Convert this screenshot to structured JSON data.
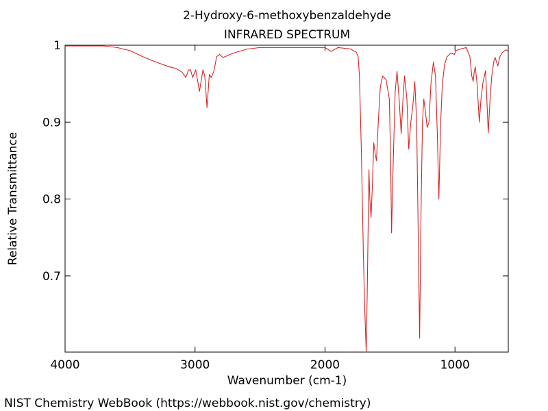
{
  "chart_data": {
    "type": "line",
    "title": "2-Hydroxy-6-methoxybenzaldehyde",
    "subtitle": "INFRARED SPECTRUM",
    "xlabel": "Wavenumber (cm-1)",
    "ylabel": "Relative Transmittance",
    "source": "NIST Chemistry WebBook (https://webbook.nist.gov/chemistry)",
    "x": [
      4000,
      3700,
      3600,
      3500,
      3400,
      3314,
      3200,
      3150,
      3100,
      3071,
      3050,
      3035,
      3018,
      2995,
      2966,
      2939,
      2925,
      2908,
      2890,
      2876,
      2855,
      2834,
      2810,
      2786,
      2700,
      2600,
      2500,
      2400,
      2200,
      2000,
      1953,
      1900,
      1800,
      1784,
      1760,
      1745,
      1735,
      1720,
      1705,
      1695,
      1683,
      1675,
      1662,
      1655,
      1646,
      1635,
      1625,
      1615,
      1604,
      1590,
      1575,
      1557,
      1530,
      1505,
      1495,
      1488,
      1475,
      1460,
      1446,
      1430,
      1414,
      1400,
      1388,
      1370,
      1356,
      1340,
      1325,
      1309,
      1295,
      1285,
      1272,
      1260,
      1250,
      1240,
      1225,
      1214,
      1200,
      1185,
      1166,
      1150,
      1135,
      1124,
      1110,
      1097,
      1080,
      1061,
      1030,
      1005,
      992,
      960,
      913,
      885,
      871,
      860,
      852,
      844,
      830,
      813,
      800,
      786,
      765,
      755,
      744,
      730,
      717,
      700,
      691,
      680,
      670,
      655,
      638,
      610,
      590
    ],
    "series": [
      {
        "name": "IR spectrum",
        "color": "#dd2222",
        "values": [
          0.999,
          0.999,
          0.997,
          0.993,
          0.985,
          0.979,
          0.972,
          0.97,
          0.965,
          0.958,
          0.968,
          0.968,
          0.958,
          0.968,
          0.94,
          0.968,
          0.96,
          0.919,
          0.962,
          0.958,
          0.966,
          0.985,
          0.988,
          0.984,
          0.99,
          0.995,
          0.997,
          0.997,
          0.997,
          0.997,
          0.992,
          0.997,
          0.995,
          0.993,
          0.991,
          0.985,
          0.96,
          0.86,
          0.73,
          0.66,
          0.601,
          0.68,
          0.838,
          0.8,
          0.776,
          0.82,
          0.873,
          0.86,
          0.85,
          0.9,
          0.945,
          0.96,
          0.955,
          0.93,
          0.85,
          0.756,
          0.85,
          0.94,
          0.966,
          0.93,
          0.885,
          0.93,
          0.96,
          0.93,
          0.865,
          0.9,
          0.92,
          0.953,
          0.9,
          0.78,
          0.619,
          0.8,
          0.9,
          0.93,
          0.91,
          0.893,
          0.9,
          0.95,
          0.978,
          0.96,
          0.88,
          0.8,
          0.9,
          0.95,
          0.975,
          0.985,
          0.99,
          0.988,
          0.993,
          0.995,
          0.997,
          0.985,
          0.96,
          0.953,
          0.965,
          0.972,
          0.95,
          0.9,
          0.93,
          0.95,
          0.967,
          0.93,
          0.886,
          0.93,
          0.96,
          0.98,
          0.984,
          0.978,
          0.973,
          0.985,
          0.99,
          0.994,
          0.993
        ]
      }
    ],
    "xlim": [
      4000,
      590
    ],
    "ylim": [
      0.601,
      1.0
    ],
    "xticks": [
      4000,
      3000,
      2000,
      1000
    ],
    "yticks": [
      0.7,
      0.8,
      0.9,
      1
    ]
  }
}
